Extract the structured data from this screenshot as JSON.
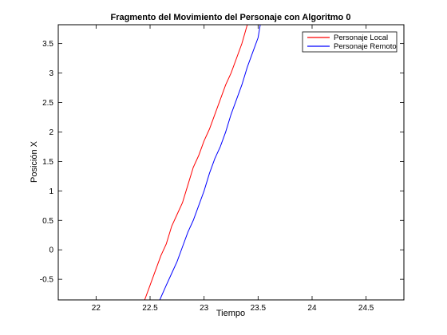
{
  "chart_data": {
    "type": "line",
    "title": "Fragmento del Movimiento del Personaje con Algoritmo 0",
    "xlabel": "Tiempo",
    "ylabel": "Posición X",
    "xlim": [
      21.65,
      24.85
    ],
    "ylim": [
      -0.85,
      3.82
    ],
    "grid": false,
    "legend_position": "top-right",
    "x_ticks": [
      22,
      22.5,
      23,
      23.5,
      24,
      24.5
    ],
    "x_tick_labels": [
      "22",
      "22.5",
      "23",
      "23.5",
      "24",
      "24.5"
    ],
    "y_ticks": [
      -0.5,
      0,
      0.5,
      1,
      1.5,
      2,
      2.5,
      3,
      3.5
    ],
    "y_tick_labels": [
      "-0.5",
      "0",
      "0.5",
      "1",
      "1.5",
      "2",
      "2.5",
      "3",
      "3.5"
    ],
    "series": [
      {
        "name": "Personaje Local",
        "color": "#ff0000",
        "x": [
          22.45,
          22.5,
          22.55,
          22.6,
          22.65,
          22.7,
          22.75,
          22.8,
          22.85,
          22.9,
          22.95,
          23.0,
          23.05,
          23.1,
          23.15,
          23.2,
          23.25,
          23.3,
          23.35,
          23.4
        ],
        "y": [
          -0.85,
          -0.6,
          -0.35,
          -0.1,
          0.1,
          0.4,
          0.6,
          0.8,
          1.1,
          1.4,
          1.6,
          1.85,
          2.05,
          2.3,
          2.55,
          2.8,
          3.0,
          3.25,
          3.5,
          3.82
        ]
      },
      {
        "name": "Personaje Remoto",
        "color": "#0000ff",
        "x": [
          22.59,
          22.65,
          22.7,
          22.75,
          22.8,
          22.85,
          22.9,
          22.95,
          23.0,
          23.05,
          23.1,
          23.15,
          23.2,
          23.25,
          23.3,
          23.35,
          23.4,
          23.45,
          23.5,
          23.52
        ],
        "y": [
          -0.85,
          -0.6,
          -0.4,
          -0.2,
          0.05,
          0.3,
          0.5,
          0.75,
          1.0,
          1.3,
          1.55,
          1.75,
          2.0,
          2.3,
          2.55,
          2.8,
          3.1,
          3.35,
          3.6,
          3.82
        ]
      }
    ]
  }
}
